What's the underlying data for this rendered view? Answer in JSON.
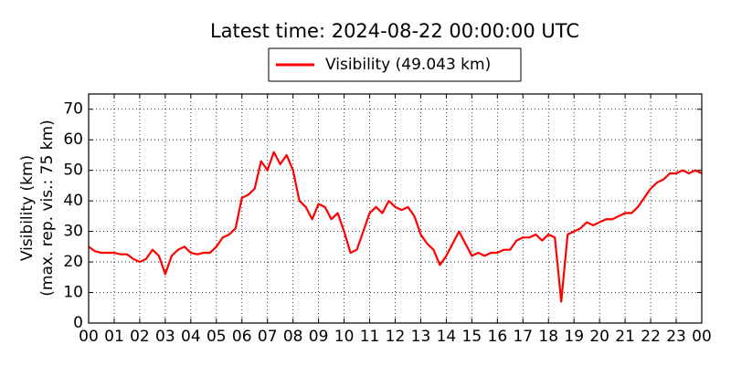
{
  "chart_data": {
    "type": "line",
    "title": "Latest time: 2024-08-22 00:00:00 UTC",
    "ylabel": [
      "Visibility (km)",
      "(max. rep. vis.: 75 km)"
    ],
    "x": [
      0,
      0.25,
      0.5,
      0.75,
      1,
      1.25,
      1.5,
      1.75,
      2,
      2.25,
      2.5,
      2.75,
      3,
      3.25,
      3.5,
      3.75,
      4,
      4.25,
      4.5,
      4.75,
      5,
      5.25,
      5.5,
      5.75,
      6,
      6.25,
      6.5,
      6.75,
      7,
      7.25,
      7.5,
      7.75,
      8,
      8.25,
      8.5,
      8.75,
      9,
      9.25,
      9.5,
      9.75,
      10,
      10.25,
      10.5,
      10.75,
      11,
      11.25,
      11.5,
      11.75,
      12,
      12.25,
      12.5,
      12.75,
      13,
      13.25,
      13.5,
      13.75,
      14,
      14.25,
      14.5,
      14.75,
      15,
      15.25,
      15.5,
      15.75,
      16,
      16.25,
      16.5,
      16.75,
      17,
      17.25,
      17.5,
      17.75,
      18,
      18.25,
      18.5,
      18.75,
      19,
      19.25,
      19.5,
      19.75,
      20,
      20.25,
      20.5,
      20.75,
      21,
      21.25,
      21.5,
      21.75,
      22,
      22.25,
      22.5,
      22.75,
      23,
      23.25,
      23.5,
      23.75,
      24
    ],
    "series": [
      {
        "name": "Visibility (49.043 km)",
        "color": "#ff0000",
        "values": [
          25,
          23.5,
          23,
          23,
          23,
          22.5,
          22.5,
          21,
          20,
          21,
          24,
          22,
          16,
          22,
          24,
          25,
          23,
          22.5,
          23,
          23,
          25,
          28,
          29,
          31,
          41,
          42,
          44,
          53,
          50,
          56,
          52,
          55,
          50,
          40,
          38,
          34,
          39,
          38,
          34,
          36,
          30,
          23,
          24,
          30,
          36,
          38,
          36,
          40,
          38,
          37,
          38,
          35,
          29,
          26,
          24,
          19,
          22,
          26,
          30,
          26,
          22,
          23,
          22,
          23,
          23,
          24,
          24,
          27,
          28,
          28,
          29,
          27,
          29,
          28,
          7,
          29,
          30,
          31,
          33,
          32,
          33,
          34,
          34,
          35,
          36,
          36,
          38,
          41,
          44,
          46,
          47,
          49,
          49,
          50,
          49,
          50,
          49
        ]
      }
    ],
    "xlim": [
      0,
      24
    ],
    "xticks": [
      {
        "value": 0,
        "label": "00"
      },
      {
        "value": 1,
        "label": "01"
      },
      {
        "value": 2,
        "label": "02"
      },
      {
        "value": 3,
        "label": "03"
      },
      {
        "value": 4,
        "label": "04"
      },
      {
        "value": 5,
        "label": "05"
      },
      {
        "value": 6,
        "label": "06"
      },
      {
        "value": 7,
        "label": "07"
      },
      {
        "value": 8,
        "label": "08"
      },
      {
        "value": 9,
        "label": "09"
      },
      {
        "value": 10,
        "label": "10"
      },
      {
        "value": 11,
        "label": "11"
      },
      {
        "value": 12,
        "label": "12"
      },
      {
        "value": 13,
        "label": "13"
      },
      {
        "value": 14,
        "label": "14"
      },
      {
        "value": 15,
        "label": "15"
      },
      {
        "value": 16,
        "label": "16"
      },
      {
        "value": 17,
        "label": "17"
      },
      {
        "value": 18,
        "label": "18"
      },
      {
        "value": 19,
        "label": "19"
      },
      {
        "value": 20,
        "label": "20"
      },
      {
        "value": 21,
        "label": "21"
      },
      {
        "value": 22,
        "label": "22"
      },
      {
        "value": 23,
        "label": "23"
      },
      {
        "value": 24,
        "label": "00"
      }
    ],
    "ylim": [
      0,
      75
    ],
    "yticks": [
      0,
      10,
      20,
      30,
      40,
      50,
      60,
      70
    ],
    "grid": true
  }
}
